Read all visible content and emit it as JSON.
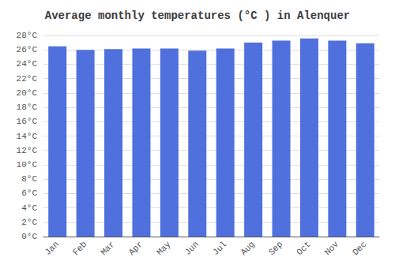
{
  "chart_data": {
    "type": "bar",
    "title": "Average monthly temperatures (°C ) in Alenquer",
    "categories": [
      "Jan",
      "Feb",
      "Mar",
      "Apr",
      "May",
      "Jun",
      "Jul",
      "Aug",
      "Sep",
      "Oct",
      "Nov",
      "Dec"
    ],
    "values": [
      26.5,
      26.0,
      26.1,
      26.2,
      26.2,
      25.9,
      26.2,
      27.0,
      27.3,
      27.6,
      27.3,
      26.9
    ],
    "ylim": [
      0,
      28
    ],
    "yticks": [
      {
        "value": 0,
        "label": "0°C"
      },
      {
        "value": 2,
        "label": "2°C"
      },
      {
        "value": 4,
        "label": "4°C"
      },
      {
        "value": 6,
        "label": "6°C"
      },
      {
        "value": 8,
        "label": "8°C"
      },
      {
        "value": 10,
        "label": "10°C"
      },
      {
        "value": 12,
        "label": "12°C"
      },
      {
        "value": 14,
        "label": "14°C"
      },
      {
        "value": 16,
        "label": "16°C"
      },
      {
        "value": 18,
        "label": "18°C"
      },
      {
        "value": 20,
        "label": "20°C"
      },
      {
        "value": 22,
        "label": "22°C"
      },
      {
        "value": 24,
        "label": "24°C"
      },
      {
        "value": 26,
        "label": "26°C"
      },
      {
        "value": 28,
        "label": "28°C"
      }
    ],
    "grid": true
  }
}
